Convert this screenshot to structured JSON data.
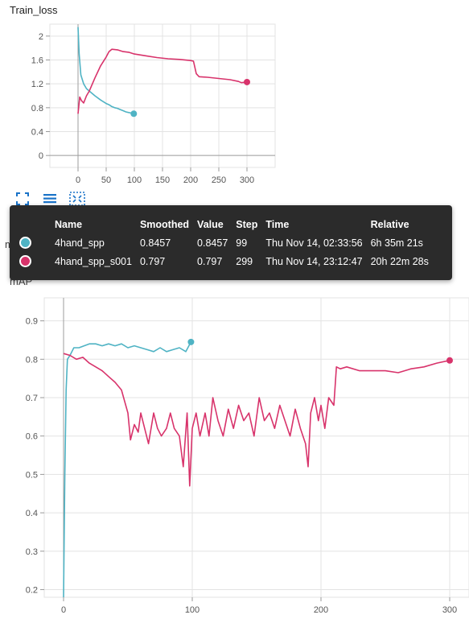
{
  "chart_data": [
    {
      "type": "line",
      "title": "Train_loss",
      "xlim": [
        -50,
        350
      ],
      "ylim": [
        -0.2,
        2.2
      ],
      "x_ticks": [
        "0",
        "50",
        "100",
        "150",
        "200",
        "250",
        "300"
      ],
      "y_ticks": [
        "0",
        "0.4",
        "0.8",
        "1.2",
        "1.6",
        "2"
      ],
      "series": [
        {
          "name": "4hand_spp",
          "color": "#4fb3c4",
          "points": [
            [
              0,
              2.15
            ],
            [
              2,
              1.7
            ],
            [
              5,
              1.35
            ],
            [
              10,
              1.2
            ],
            [
              15,
              1.12
            ],
            [
              20,
              1.08
            ],
            [
              30,
              1.0
            ],
            [
              40,
              0.93
            ],
            [
              50,
              0.87
            ],
            [
              55,
              0.85
            ],
            [
              60,
              0.82
            ],
            [
              65,
              0.8
            ],
            [
              70,
              0.79
            ],
            [
              75,
              0.77
            ],
            [
              80,
              0.75
            ],
            [
              85,
              0.73
            ],
            [
              90,
              0.72
            ],
            [
              95,
              0.71
            ],
            [
              99,
              0.7
            ]
          ]
        },
        {
          "name": "4hand_spp_s001",
          "color": "#d8336b",
          "points": [
            [
              0,
              0.7
            ],
            [
              3,
              0.98
            ],
            [
              6,
              0.92
            ],
            [
              10,
              0.88
            ],
            [
              15,
              1.0
            ],
            [
              20,
              1.08
            ],
            [
              30,
              1.3
            ],
            [
              40,
              1.5
            ],
            [
              50,
              1.65
            ],
            [
              55,
              1.74
            ],
            [
              60,
              1.78
            ],
            [
              70,
              1.77
            ],
            [
              80,
              1.74
            ],
            [
              90,
              1.73
            ],
            [
              100,
              1.7
            ],
            [
              120,
              1.67
            ],
            [
              140,
              1.64
            ],
            [
              160,
              1.62
            ],
            [
              180,
              1.61
            ],
            [
              200,
              1.59
            ],
            [
              205,
              1.58
            ],
            [
              210,
              1.37
            ],
            [
              215,
              1.32
            ],
            [
              230,
              1.31
            ],
            [
              250,
              1.29
            ],
            [
              270,
              1.27
            ],
            [
              285,
              1.24
            ],
            [
              290,
              1.22
            ],
            [
              300,
              1.23
            ]
          ]
        }
      ]
    },
    {
      "type": "line",
      "title": "mAP",
      "xlim": [
        -15,
        315
      ],
      "ylim": [
        0.18,
        0.96
      ],
      "x_ticks": [
        "0",
        "100",
        "200",
        "300"
      ],
      "y_ticks": [
        "0.2",
        "0.3",
        "0.4",
        "0.5",
        "0.6",
        "0.7",
        "0.8",
        "0.9"
      ],
      "series": [
        {
          "name": "4hand_spp",
          "color": "#4fb3c4",
          "points": [
            [
              0,
              0.18
            ],
            [
              1,
              0.5
            ],
            [
              2,
              0.72
            ],
            [
              3,
              0.8
            ],
            [
              5,
              0.81
            ],
            [
              8,
              0.83
            ],
            [
              12,
              0.83
            ],
            [
              16,
              0.835
            ],
            [
              20,
              0.84
            ],
            [
              25,
              0.84
            ],
            [
              30,
              0.835
            ],
            [
              35,
              0.84
            ],
            [
              40,
              0.835
            ],
            [
              45,
              0.84
            ],
            [
              50,
              0.83
            ],
            [
              55,
              0.835
            ],
            [
              60,
              0.83
            ],
            [
              65,
              0.825
            ],
            [
              70,
              0.82
            ],
            [
              75,
              0.83
            ],
            [
              80,
              0.82
            ],
            [
              85,
              0.825
            ],
            [
              90,
              0.83
            ],
            [
              95,
              0.82
            ],
            [
              99,
              0.845
            ]
          ]
        },
        {
          "name": "4hand_spp_s001",
          "color": "#d8336b",
          "points": [
            [
              0,
              0.815
            ],
            [
              5,
              0.81
            ],
            [
              10,
              0.8
            ],
            [
              15,
              0.805
            ],
            [
              20,
              0.79
            ],
            [
              25,
              0.78
            ],
            [
              30,
              0.77
            ],
            [
              35,
              0.755
            ],
            [
              40,
              0.74
            ],
            [
              45,
              0.72
            ],
            [
              50,
              0.66
            ],
            [
              52,
              0.59
            ],
            [
              55,
              0.63
            ],
            [
              58,
              0.61
            ],
            [
              60,
              0.66
            ],
            [
              63,
              0.62
            ],
            [
              66,
              0.58
            ],
            [
              70,
              0.66
            ],
            [
              73,
              0.62
            ],
            [
              76,
              0.6
            ],
            [
              80,
              0.62
            ],
            [
              83,
              0.66
            ],
            [
              86,
              0.62
            ],
            [
              90,
              0.6
            ],
            [
              93,
              0.52
            ],
            [
              96,
              0.66
            ],
            [
              98,
              0.47
            ],
            [
              100,
              0.62
            ],
            [
              103,
              0.66
            ],
            [
              106,
              0.6
            ],
            [
              110,
              0.66
            ],
            [
              113,
              0.6
            ],
            [
              116,
              0.7
            ],
            [
              120,
              0.64
            ],
            [
              124,
              0.6
            ],
            [
              128,
              0.67
            ],
            [
              132,
              0.62
            ],
            [
              136,
              0.68
            ],
            [
              140,
              0.64
            ],
            [
              144,
              0.66
            ],
            [
              148,
              0.6
            ],
            [
              152,
              0.7
            ],
            [
              156,
              0.64
            ],
            [
              160,
              0.66
            ],
            [
              164,
              0.62
            ],
            [
              168,
              0.68
            ],
            [
              172,
              0.64
            ],
            [
              176,
              0.6
            ],
            [
              180,
              0.67
            ],
            [
              184,
              0.62
            ],
            [
              188,
              0.58
            ],
            [
              190,
              0.52
            ],
            [
              192,
              0.66
            ],
            [
              195,
              0.7
            ],
            [
              198,
              0.64
            ],
            [
              200,
              0.68
            ],
            [
              203,
              0.62
            ],
            [
              206,
              0.7
            ],
            [
              210,
              0.68
            ],
            [
              212,
              0.78
            ],
            [
              215,
              0.775
            ],
            [
              220,
              0.78
            ],
            [
              230,
              0.77
            ],
            [
              240,
              0.77
            ],
            [
              250,
              0.77
            ],
            [
              260,
              0.765
            ],
            [
              270,
              0.775
            ],
            [
              280,
              0.78
            ],
            [
              290,
              0.79
            ],
            [
              300,
              0.797
            ]
          ]
        }
      ]
    }
  ],
  "toolbar": {
    "buttons": [
      {
        "icon": "fullscreen-icon"
      },
      {
        "icon": "data-table-icon"
      },
      {
        "icon": "fit-domain-icon"
      }
    ]
  },
  "tooltip": {
    "headers": {
      "name": "Name",
      "smoothed": "Smoothed",
      "value": "Value",
      "step": "Step",
      "time": "Time",
      "relative": "Relative"
    },
    "rows": [
      {
        "color": "#4fb3c4",
        "name": "4hand_spp",
        "smoothed": "0.8457",
        "value": "0.8457",
        "step": "99",
        "time": "Thu Nov 14, 02:33:56",
        "relative": "6h 35m 21s"
      },
      {
        "color": "#d8336b",
        "name": "4hand_spp_s001",
        "smoothed": "0.797",
        "value": "0.797",
        "step": "299",
        "time": "Thu Nov 14, 23:12:47",
        "relative": "20h 22m 28s"
      }
    ]
  },
  "map_title_fragment": "mAP",
  "behind_fragment": "m"
}
